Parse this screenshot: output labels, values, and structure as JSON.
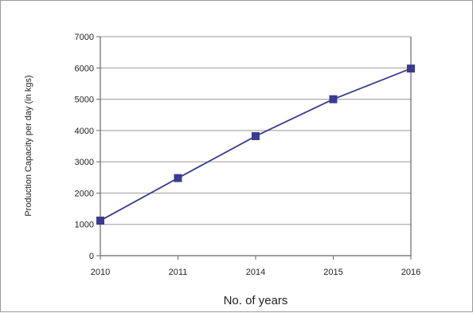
{
  "chart_data": {
    "type": "line",
    "title": "",
    "xlabel": "No. of years",
    "ylabel": "Production Capacity per day (in kgs)",
    "categories": [
      "2010",
      "2011",
      "2014",
      "2015",
      "2016"
    ],
    "series": [
      {
        "values": [
          1120,
          2480,
          3820,
          5000,
          5980
        ]
      }
    ],
    "ylim": [
      0,
      7000
    ],
    "yticks": [
      0,
      1000,
      2000,
      3000,
      4000,
      5000,
      6000,
      7000
    ],
    "grid": true,
    "line_color": "#3b3b8f",
    "marker": "square"
  }
}
